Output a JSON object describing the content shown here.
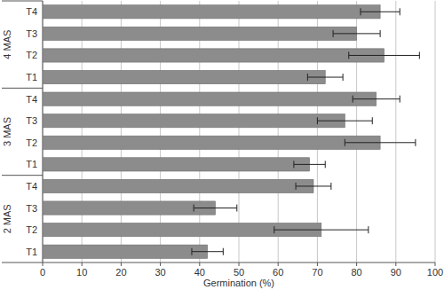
{
  "chart_data": {
    "type": "bar",
    "orientation": "horizontal",
    "x_label": "Germination (%)",
    "groups": [
      "2 MAS",
      "3 MAS",
      "4 MAS"
    ],
    "categories": [
      "T1",
      "T2",
      "T3",
      "T4",
      "T1",
      "T2",
      "T3",
      "T4",
      "T1",
      "T2",
      "T3",
      "T4"
    ],
    "values": [
      42,
      71,
      44,
      69,
      68,
      86,
      77,
      85,
      72,
      87,
      80,
      86
    ],
    "errors": [
      4,
      12,
      5.5,
      4.5,
      4,
      9,
      7,
      6,
      4.5,
      9,
      6,
      5
    ],
    "color": "#8c8c8c",
    "xlim": [
      0,
      100
    ],
    "xticks": [
      0,
      10,
      20,
      30,
      40,
      50,
      60,
      70,
      80,
      90,
      100
    ],
    "grid": true
  }
}
